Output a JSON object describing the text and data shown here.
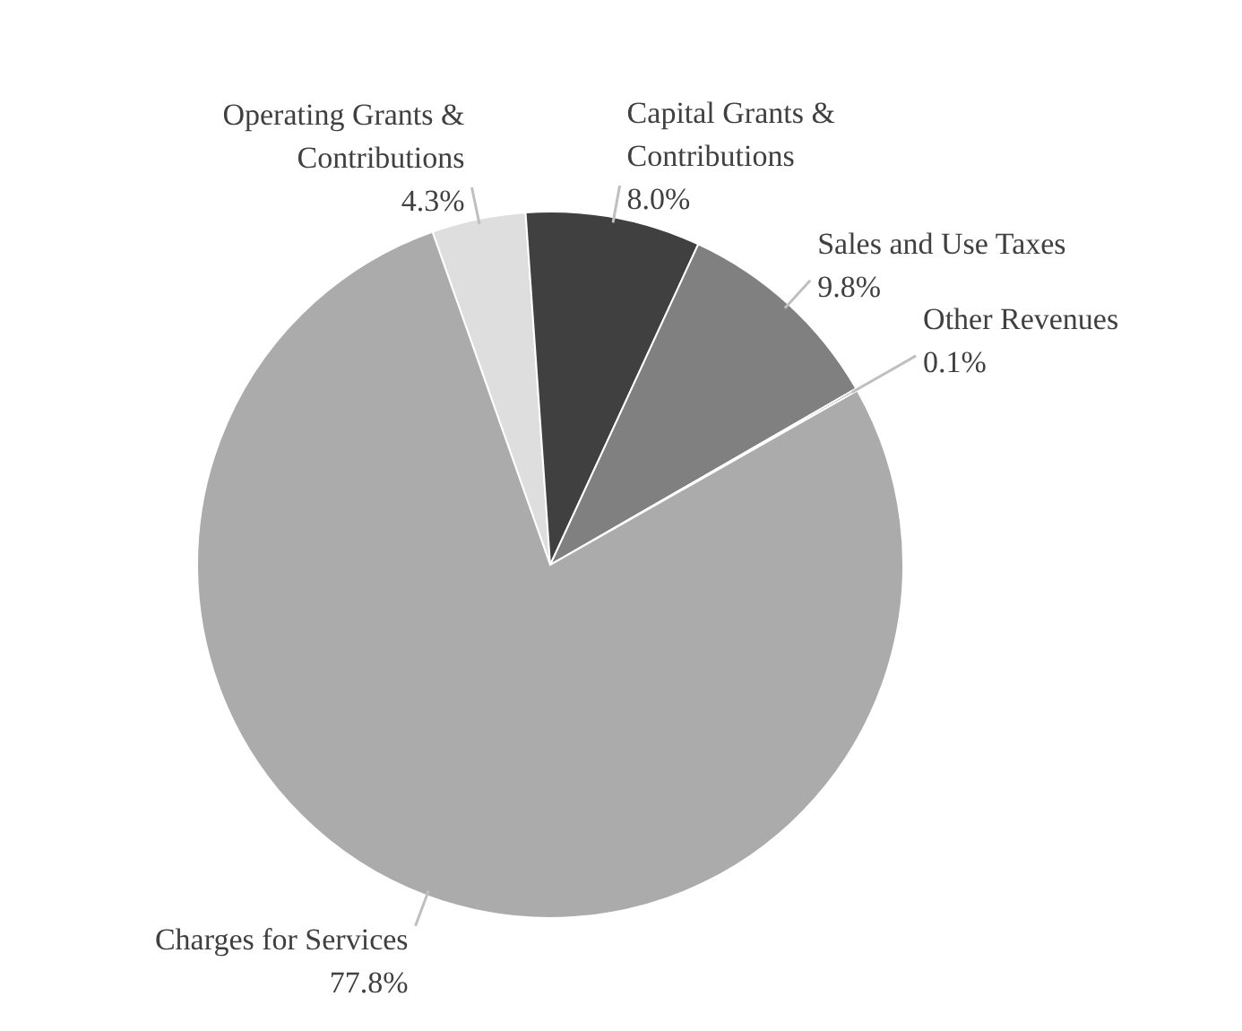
{
  "chart_data": {
    "type": "pie",
    "categories": [
      "Operating Grants & Contributions",
      "Capital Grants & Contributions",
      "Sales and Use Taxes",
      "Other Revenues",
      "Charges for Services"
    ],
    "values": [
      4.3,
      8.0,
      9.8,
      0.1,
      77.8
    ],
    "colors": [
      "#dedede",
      "#404040",
      "#808080",
      "#303030",
      "#ababab"
    ],
    "value_labels": [
      "4.3%",
      "8.0%",
      "9.8%",
      "0.1%",
      "77.8%"
    ]
  }
}
